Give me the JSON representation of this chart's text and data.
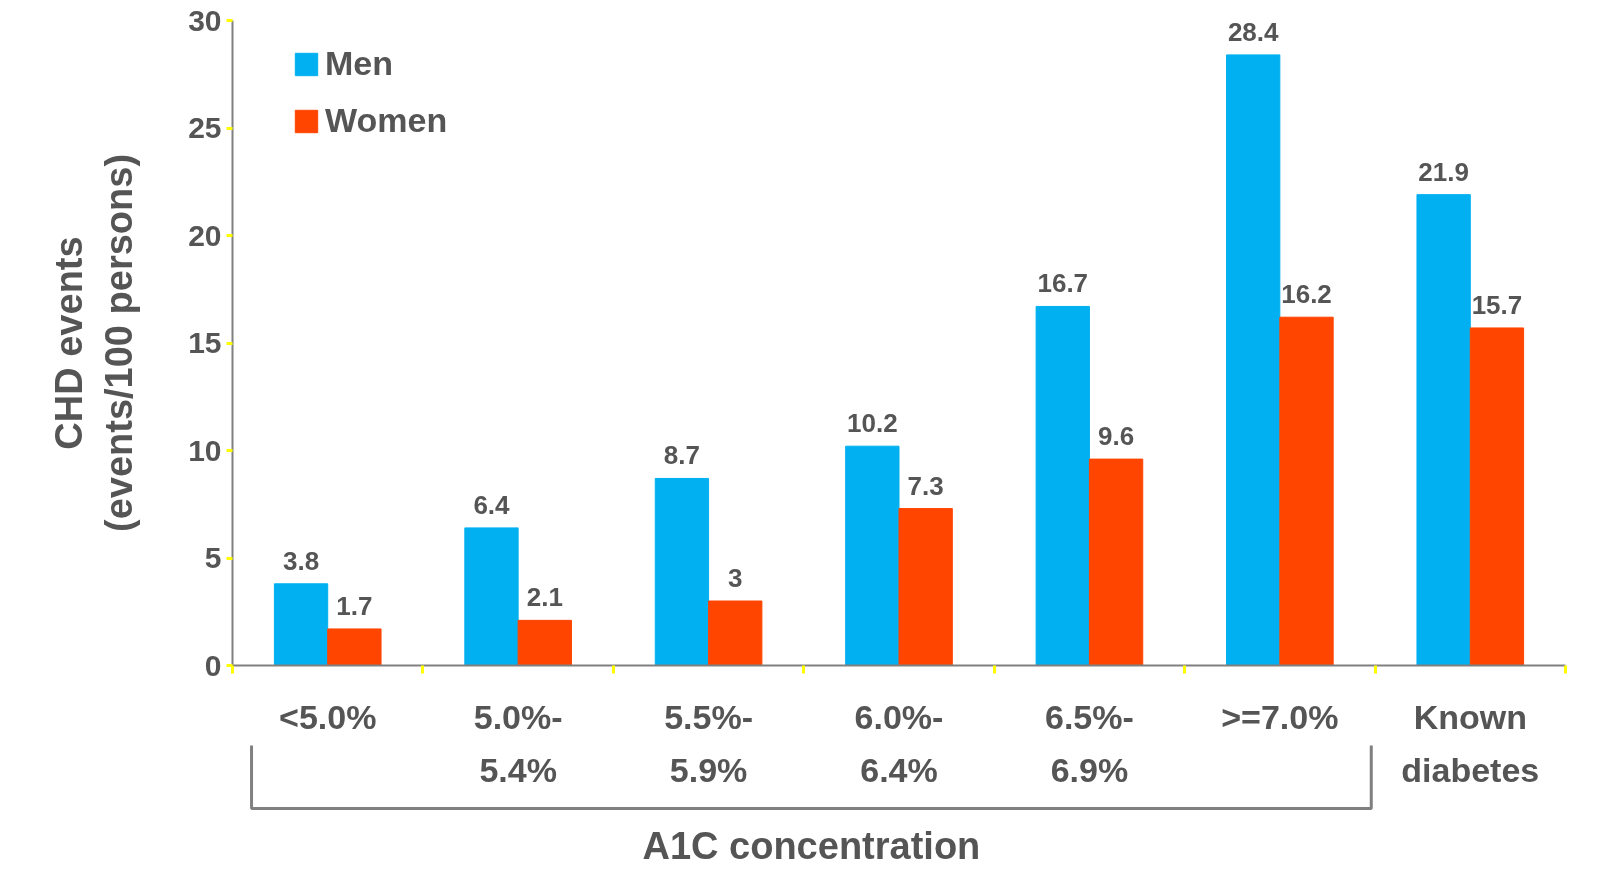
{
  "chart_data": {
    "type": "bar",
    "xlabel": "A1C concentration",
    "ylabel": "CHD events\n(events/100 persons)",
    "categories": [
      "<5.0%",
      "5.0%-5.4%",
      "5.5%-5.9%",
      "6.0%-6.4%",
      "6.5%-6.9%",
      ">=7.0%",
      "Known diabetes"
    ],
    "series": [
      {
        "name": "Men",
        "color": "#00b0f0",
        "values": [
          3.8,
          6.4,
          8.7,
          10.2,
          16.7,
          28.4,
          21.9
        ]
      },
      {
        "name": "Women",
        "color": "#ff4500",
        "values": [
          1.7,
          2.1,
          3,
          7.3,
          9.6,
          16.2,
          15.7
        ]
      }
    ],
    "ylim": [
      0,
      30
    ],
    "yticks": [
      0,
      5,
      10,
      15,
      20,
      25,
      30
    ],
    "grid": false,
    "legend": "top left",
    "data_labels": true
  }
}
